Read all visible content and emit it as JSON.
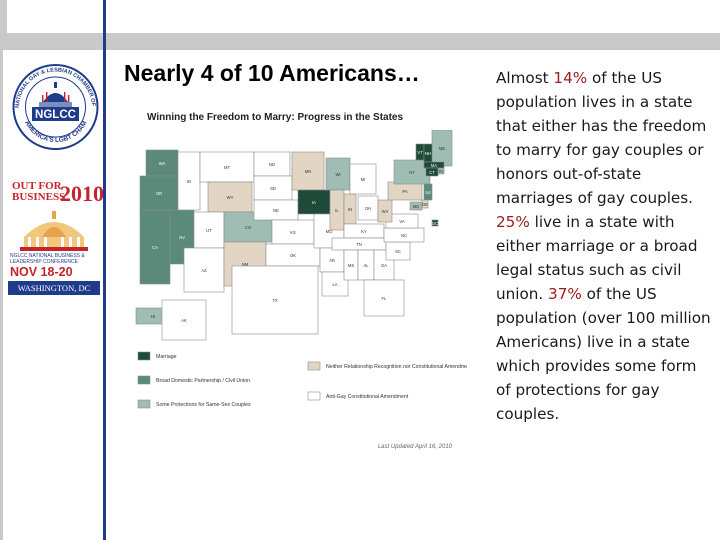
{
  "slide": {
    "title": "Nearly 4 of 10 Americans…"
  },
  "sidebar": {
    "seal": {
      "ring_text": "NATIONAL GAY & LESBIAN CHAMBER OF COMMERCE",
      "bottom_text": "AMERICA'S LGBT CHAMBER",
      "acronym": "NGLCC"
    },
    "event": {
      "title_line1": "OUT FOR",
      "title_line2": "BUSINESS",
      "year": "2010",
      "subtitle": "NGLCC NATIONAL BUSINESS & LEADERSHIP CONFERENCE",
      "dates": "NOV 18-20",
      "location": "WASHINGTON, DC"
    }
  },
  "map": {
    "title": "Winning the Freedom to Marry: Progress in the States",
    "updated": "Last Updated April 16, 2010",
    "legend": [
      {
        "label": "Marriage",
        "color": "#1e4a3a"
      },
      {
        "label": "Broad Domestic Partnership / Civil Union",
        "color": "#5b8a7a"
      },
      {
        "label": "Some Protections for Same-Sex Couples",
        "color": "#9fbdb3"
      },
      {
        "label": "Neither Relationship Recognition nor Constitutional Amendment",
        "color": "#e3d5c3"
      },
      {
        "label": "Anti-Gay Constitutional Amendment",
        "color": "#ffffff"
      }
    ],
    "states": [
      {
        "abbr": "WA",
        "color": "#5b8a7a"
      },
      {
        "abbr": "OR",
        "color": "#5b8a7a"
      },
      {
        "abbr": "CA",
        "color": "#5b8a7a"
      },
      {
        "abbr": "NV",
        "color": "#5b8a7a"
      },
      {
        "abbr": "ID",
        "color": "#ffffff"
      },
      {
        "abbr": "MT",
        "color": "#ffffff"
      },
      {
        "abbr": "WY",
        "color": "#e3d5c3"
      },
      {
        "abbr": "UT",
        "color": "#ffffff"
      },
      {
        "abbr": "CO",
        "color": "#9fbdb3"
      },
      {
        "abbr": "AZ",
        "color": "#ffffff"
      },
      {
        "abbr": "NM",
        "color": "#e3d5c3"
      },
      {
        "abbr": "ND",
        "color": "#ffffff"
      },
      {
        "abbr": "SD",
        "color": "#ffffff"
      },
      {
        "abbr": "NE",
        "color": "#ffffff"
      },
      {
        "abbr": "KS",
        "color": "#ffffff"
      },
      {
        "abbr": "OK",
        "color": "#ffffff"
      },
      {
        "abbr": "TX",
        "color": "#ffffff"
      },
      {
        "abbr": "MN",
        "color": "#e3d5c3"
      },
      {
        "abbr": "IA",
        "color": "#1e4a3a"
      },
      {
        "abbr": "MO",
        "color": "#ffffff"
      },
      {
        "abbr": "AR",
        "color": "#ffffff"
      },
      {
        "abbr": "LA",
        "color": "#ffffff"
      },
      {
        "abbr": "WI",
        "color": "#9fbdb3"
      },
      {
        "abbr": "IL",
        "color": "#e3d5c3"
      },
      {
        "abbr": "IN",
        "color": "#e3d5c3"
      },
      {
        "abbr": "MI",
        "color": "#ffffff"
      },
      {
        "abbr": "OH",
        "color": "#ffffff"
      },
      {
        "abbr": "KY",
        "color": "#ffffff"
      },
      {
        "abbr": "TN",
        "color": "#ffffff"
      },
      {
        "abbr": "MS",
        "color": "#ffffff"
      },
      {
        "abbr": "AL",
        "color": "#ffffff"
      },
      {
        "abbr": "GA",
        "color": "#ffffff"
      },
      {
        "abbr": "FL",
        "color": "#ffffff"
      },
      {
        "abbr": "SC",
        "color": "#ffffff"
      },
      {
        "abbr": "NC",
        "color": "#ffffff"
      },
      {
        "abbr": "VA",
        "color": "#ffffff"
      },
      {
        "abbr": "WV",
        "color": "#e3d5c3"
      },
      {
        "abbr": "PA",
        "color": "#e3d5c3"
      },
      {
        "abbr": "NY",
        "color": "#9fbdb3"
      },
      {
        "abbr": "VT",
        "color": "#1e4a3a"
      },
      {
        "abbr": "ME",
        "color": "#9fbdb3"
      },
      {
        "abbr": "NH",
        "color": "#1e4a3a"
      },
      {
        "abbr": "MA",
        "color": "#1e4a3a"
      },
      {
        "abbr": "RI",
        "color": "#9fbdb3"
      },
      {
        "abbr": "CT",
        "color": "#1e4a3a"
      },
      {
        "abbr": "NJ",
        "color": "#5b8a7a"
      },
      {
        "abbr": "DE",
        "color": "#e3d5c3"
      },
      {
        "abbr": "MD",
        "color": "#9fbdb3"
      },
      {
        "abbr": "DC",
        "color": "#1e4a3a"
      },
      {
        "abbr": "HI",
        "color": "#9fbdb3"
      },
      {
        "abbr": "AK",
        "color": "#ffffff"
      }
    ]
  },
  "body": {
    "p1": "Almost ",
    "pct1": "14%",
    "p2": " of the US population lives in a state that either has the freedom to marry for gay couples or honors out-of-state marriages of gay couples. ",
    "pct2": "25%",
    "p3": " live in a state with either marriage or a broad legal status such as civil union. ",
    "pct3": "37%",
    "p4": " of the US population (over 100 million Americans) live in a state which provides some form of protections for gay couples."
  },
  "colors": {
    "accent_blue": "#1f3b8c",
    "accent_red": "#c6232a",
    "highlight_red": "#9e1b1b",
    "bar_gray": "#c9c9c9"
  }
}
